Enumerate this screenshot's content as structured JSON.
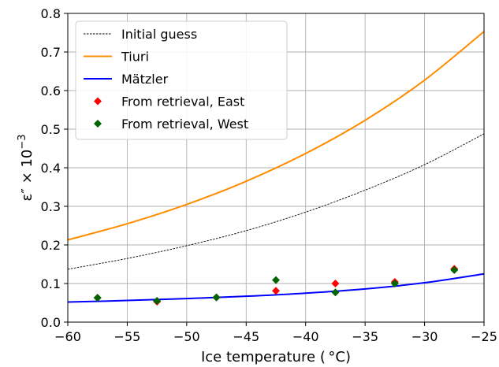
{
  "chart_data": {
    "type": "line",
    "xlabel": "Ice temperature ( °C)",
    "ylabel": "ε″ × 10",
    "ylabel_exp": "−3",
    "xlim": [
      -60,
      -25
    ],
    "ylim": [
      0.0,
      0.8
    ],
    "xticks": [
      -60,
      -55,
      -50,
      -45,
      -40,
      -35,
      -30,
      -25
    ],
    "yticks": [
      0.0,
      0.1,
      0.2,
      0.3,
      0.4,
      0.5,
      0.6,
      0.7,
      0.8
    ],
    "xtick_labels": [
      "−60",
      "−55",
      "−50",
      "−45",
      "−40",
      "−35",
      "−30",
      "−25"
    ],
    "ytick_labels": [
      "0.0",
      "0.1",
      "0.2",
      "0.3",
      "0.4",
      "0.5",
      "0.6",
      "0.7",
      "0.8"
    ],
    "grid": true,
    "legend_position": "top-left",
    "series": [
      {
        "name": "Initial guess",
        "kind": "line",
        "style": "dashed",
        "color": "#000000",
        "x": [
          -60,
          -55,
          -50,
          -45,
          -40,
          -35,
          -30,
          -25
        ],
        "y": [
          0.137,
          0.165,
          0.198,
          0.237,
          0.285,
          0.342,
          0.408,
          0.488
        ]
      },
      {
        "name": "Tiuri",
        "kind": "line",
        "style": "solid",
        "color": "#ff8c00",
        "x": [
          -60,
          -55,
          -50,
          -45,
          -40,
          -35,
          -30,
          -25
        ],
        "y": [
          0.213,
          0.255,
          0.305,
          0.365,
          0.437,
          0.523,
          0.627,
          0.753
        ]
      },
      {
        "name": "Mätzler",
        "kind": "line",
        "style": "solid",
        "color": "#0000ff",
        "x": [
          -60,
          -55,
          -50,
          -45,
          -40,
          -35,
          -30,
          -25
        ],
        "y": [
          0.052,
          0.056,
          0.061,
          0.067,
          0.075,
          0.086,
          0.102,
          0.125
        ]
      },
      {
        "name": "From retrieval, East",
        "kind": "scatter",
        "marker": "diamond",
        "color": "#ff0000",
        "x": [
          -57.5,
          -52.5,
          -47.5,
          -42.5,
          -37.5,
          -32.5,
          -27.5
        ],
        "y": [
          0.063,
          0.053,
          0.064,
          0.081,
          0.1,
          0.104,
          0.138
        ]
      },
      {
        "name": "From retrieval, West",
        "kind": "scatter",
        "marker": "diamond",
        "color": "#006400",
        "x": [
          -57.5,
          -52.5,
          -47.5,
          -42.5,
          -37.5,
          -32.5,
          -27.5
        ],
        "y": [
          0.063,
          0.055,
          0.064,
          0.109,
          0.077,
          0.1,
          0.135
        ]
      }
    ]
  }
}
